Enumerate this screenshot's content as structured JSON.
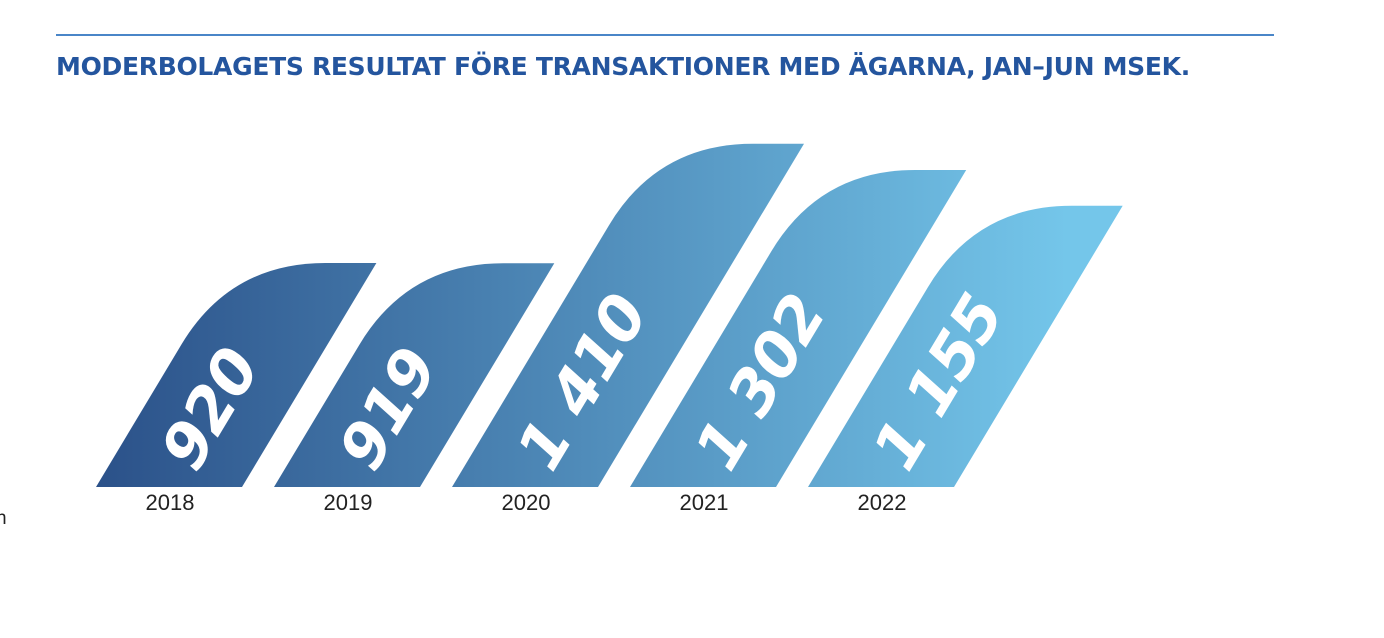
{
  "header": {
    "title": "MODERBOLAGETS RESULTAT FÖRE TRANSAKTIONER MED ÄGARNA, JAN–JUN MSEK."
  },
  "edge_fragment": "n",
  "chart_data": {
    "type": "bar",
    "title": "MODERBOLAGETS RESULTAT FÖRE TRANSAKTIONER MED ÄGARNA, JAN–JUN MSEK.",
    "categories": [
      "2018",
      "2019",
      "2020",
      "2021",
      "2022"
    ],
    "values": [
      920,
      919,
      1410,
      1302,
      1155
    ],
    "value_labels": [
      "920",
      "919",
      "1 410",
      "1 302",
      "1 155"
    ],
    "xlabel": "",
    "ylabel": "",
    "grid": false,
    "legend": "none",
    "colors": {
      "bar_dark": "#2b5189",
      "bar_light": "#74c6ea",
      "value_label": "#ffffff",
      "axis_label": "#222222",
      "title": "#24559e",
      "rule": "#4a86c8"
    }
  }
}
